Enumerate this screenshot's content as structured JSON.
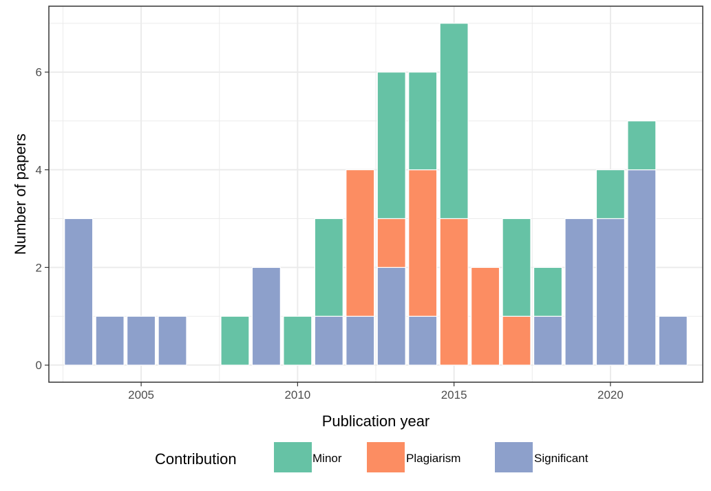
{
  "chart_data": {
    "type": "bar",
    "stacked": true,
    "xlabel": "Publication year",
    "ylabel": "Number of papers",
    "x": [
      2003,
      2004,
      2005,
      2006,
      2008,
      2009,
      2010,
      2011,
      2012,
      2013,
      2014,
      2015,
      2016,
      2017,
      2018,
      2019,
      2020,
      2021,
      2022
    ],
    "series": [
      {
        "name": "Significant",
        "color": "#8DA0CB",
        "values": [
          3,
          1,
          1,
          1,
          0,
          2,
          0,
          1,
          1,
          2,
          1,
          0,
          0,
          0,
          1,
          3,
          3,
          4,
          1
        ]
      },
      {
        "name": "Plagiarism",
        "color": "#FC8D62",
        "values": [
          0,
          0,
          0,
          0,
          0,
          0,
          0,
          0,
          3,
          1,
          3,
          3,
          2,
          1,
          0,
          0,
          0,
          0,
          0
        ]
      },
      {
        "name": "Minor",
        "color": "#66C2A5",
        "values": [
          0,
          0,
          0,
          0,
          1,
          0,
          1,
          2,
          0,
          3,
          2,
          4,
          0,
          2,
          1,
          0,
          1,
          1,
          0
        ]
      }
    ],
    "xlim": [
      2002.05,
      2022.95
    ],
    "ylim": [
      -0.35,
      7.35
    ],
    "x_ticks": [
      "2005",
      "2010",
      "2015",
      "2020"
    ],
    "y_ticks": [
      "0",
      "2",
      "4",
      "6"
    ],
    "grid": true,
    "legend": {
      "title": "Contribution",
      "position": "bottom",
      "entries": [
        "Minor",
        "Plagiarism",
        "Significant"
      ]
    }
  }
}
